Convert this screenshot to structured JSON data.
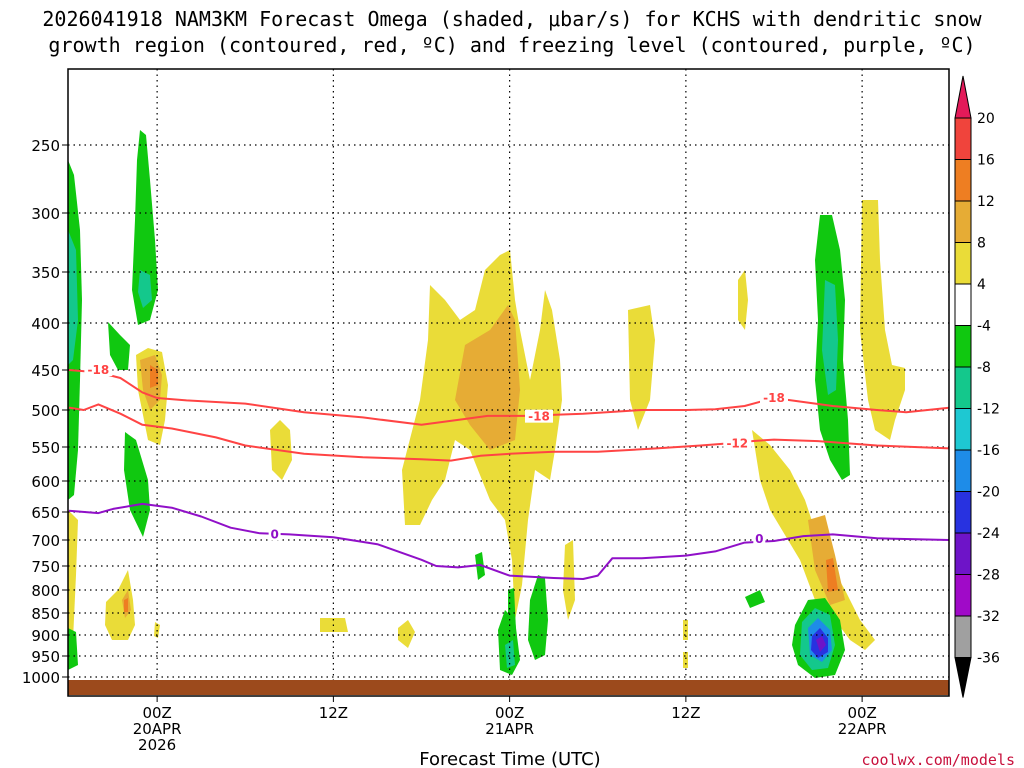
{
  "chart_data": {
    "type": "time-height cross-section",
    "title_line1": "2026041918 NAM3KM Forecast Omega (shaded, μbar/s) for KCHS with dendritic snow",
    "title_line2": "growth region (contoured, red, ºC) and freezing level (contoured, purple, ºC)",
    "xlabel": "Forecast Time (UTC)",
    "x_ticks": [
      {
        "hour": 6,
        "line1": "00Z",
        "line2": "20APR",
        "line3": "2026"
      },
      {
        "hour": 18,
        "line1": "12Z",
        "line2": "",
        "line3": ""
      },
      {
        "hour": 30,
        "line1": "00Z",
        "line2": "21APR",
        "line3": ""
      },
      {
        "hour": 42,
        "line1": "12Z",
        "line2": "",
        "line3": ""
      },
      {
        "hour": 54,
        "line1": "00Z",
        "line2": "22APR",
        "line3": ""
      }
    ],
    "y_ticks": [
      250,
      300,
      350,
      400,
      450,
      500,
      550,
      600,
      650,
      700,
      750,
      800,
      850,
      900,
      950,
      1000
    ],
    "ylim": [
      180,
      1030
    ],
    "colorbar": {
      "labels": [
        "20",
        "16",
        "12",
        "8",
        "4",
        "-4",
        "-8",
        "-12",
        "-16",
        "-20",
        "-24",
        "-28",
        "-32",
        "-36"
      ],
      "colors": [
        "#e31a59",
        "#f0443c",
        "#ee7e22",
        "#e6ac35",
        "#eadc38",
        "#ffffff",
        "#10c810",
        "#14c88c",
        "#1ec8d2",
        "#1e8ce8",
        "#2832e0",
        "#6e14c8",
        "#a00ac8",
        "#a0a0a0",
        "#000000"
      ]
    },
    "contours": [
      {
        "name": "dendritic -18",
        "label": "-18",
        "color": "#ff4444",
        "points": [
          [
            0,
            450
          ],
          [
            2,
            453
          ],
          [
            3.5,
            460
          ],
          [
            5,
            478
          ],
          [
            6,
            485
          ],
          [
            8,
            488
          ],
          [
            12,
            492
          ],
          [
            16,
            503
          ],
          [
            20,
            510
          ],
          [
            24,
            520
          ],
          [
            27,
            512
          ],
          [
            28.5,
            508
          ],
          [
            31,
            508
          ],
          [
            35,
            505
          ],
          [
            39,
            500
          ],
          [
            42,
            500
          ],
          [
            44,
            499
          ],
          [
            46,
            495
          ],
          [
            48,
            485
          ],
          [
            50,
            490
          ],
          [
            52,
            495
          ],
          [
            55,
            500
          ],
          [
            57,
            503
          ],
          [
            60,
            497
          ]
        ],
        "label_positions": [
          [
            2,
            450
          ],
          [
            32,
            509
          ],
          [
            48,
            485
          ]
        ]
      },
      {
        "name": "dendritic -12",
        "label": "-12",
        "color": "#ff4444",
        "points": [
          [
            0,
            497
          ],
          [
            1,
            500
          ],
          [
            2,
            493
          ],
          [
            3.5,
            505
          ],
          [
            5,
            520
          ],
          [
            7,
            525
          ],
          [
            10,
            537
          ],
          [
            12,
            548
          ],
          [
            16,
            560
          ],
          [
            20,
            565
          ],
          [
            24,
            568
          ],
          [
            26,
            570
          ],
          [
            28,
            563
          ],
          [
            30,
            560
          ],
          [
            33,
            557
          ],
          [
            36,
            557
          ],
          [
            40,
            552
          ],
          [
            43,
            548
          ],
          [
            45,
            545
          ],
          [
            46.5,
            542
          ],
          [
            48,
            540
          ],
          [
            51,
            542
          ],
          [
            55,
            548
          ],
          [
            60,
            552
          ]
        ],
        "label_positions": [
          [
            45.5,
            545
          ]
        ]
      },
      {
        "name": "freezing level",
        "label": "0",
        "color": "#9010c8",
        "points": [
          [
            0,
            648
          ],
          [
            2,
            652
          ],
          [
            3,
            645
          ],
          [
            5,
            637
          ],
          [
            7,
            643
          ],
          [
            9,
            658
          ],
          [
            11,
            678
          ],
          [
            13,
            688
          ],
          [
            15,
            690
          ],
          [
            18,
            695
          ],
          [
            21,
            708
          ],
          [
            24,
            738
          ],
          [
            25,
            750
          ],
          [
            26.5,
            753
          ],
          [
            28,
            748
          ],
          [
            30,
            770
          ],
          [
            33,
            775
          ],
          [
            35,
            777
          ],
          [
            36,
            770
          ],
          [
            37,
            735
          ],
          [
            39,
            735
          ],
          [
            42,
            730
          ],
          [
            44,
            722
          ],
          [
            46,
            705
          ],
          [
            48,
            702
          ],
          [
            50,
            693
          ],
          [
            52,
            690
          ],
          [
            55,
            697
          ],
          [
            60,
            700
          ]
        ],
        "label_positions": [
          [
            14,
            690
          ],
          [
            47,
            698
          ]
        ]
      }
    ],
    "footer_left": "",
    "footer_right": "coolwx.com/models"
  }
}
